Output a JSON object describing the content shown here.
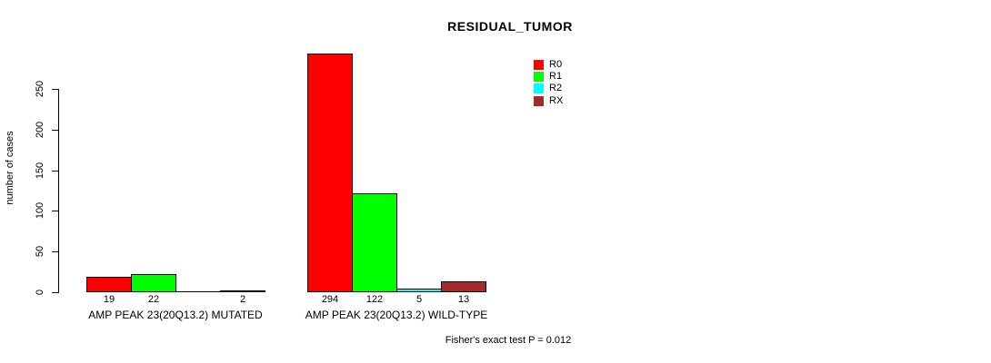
{
  "chart_data": {
    "type": "bar",
    "title": "RESIDUAL_TUMOR",
    "ylabel": "number of cases",
    "xlabel": "",
    "categories": [
      "AMP PEAK 23(20Q13.2) MUTATED",
      "AMP PEAK 23(20Q13.2) WILD-TYPE"
    ],
    "series": [
      {
        "name": "R0",
        "color": "#FF0000",
        "values": [
          19,
          294
        ]
      },
      {
        "name": "R1",
        "color": "#00FF00",
        "values": [
          22,
          122
        ]
      },
      {
        "name": "R2",
        "color": "#00FFFF",
        "values": [
          0,
          5
        ]
      },
      {
        "name": "RX",
        "color": "#A52A2A",
        "values": [
          2,
          13
        ]
      }
    ],
    "bar_value_labels": [
      [
        "19",
        "22",
        "",
        "2"
      ],
      [
        "294",
        "122",
        "5",
        "13"
      ]
    ],
    "yticks": [
      0,
      50,
      100,
      150,
      200,
      250
    ],
    "ylim": [
      0,
      294
    ],
    "grid": false,
    "legend": {
      "position": "top-right",
      "entries": [
        "R0",
        "R1",
        "R2",
        "RX"
      ]
    },
    "annotation": "Fisher's exact test P = 0.012"
  }
}
